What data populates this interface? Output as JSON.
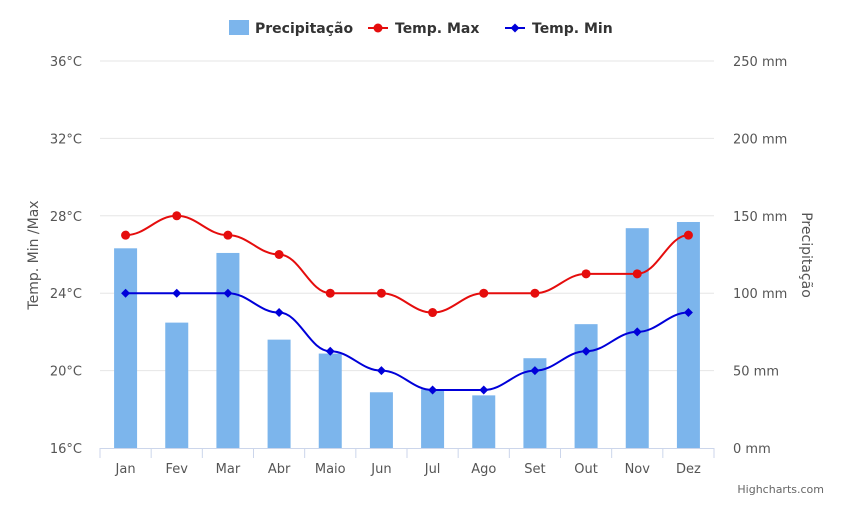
{
  "chart_data": {
    "type": "bar+line",
    "categories": [
      "Jan",
      "Fev",
      "Mar",
      "Abr",
      "Maio",
      "Jun",
      "Jul",
      "Ago",
      "Set",
      "Out",
      "Nov",
      "Dez"
    ],
    "series": [
      {
        "name": "Precipitação",
        "type": "bar",
        "axis": "right",
        "color": "#7cb5ec",
        "values": [
          129,
          81,
          126,
          70,
          61,
          36,
          38,
          34,
          58,
          80,
          142,
          146
        ]
      },
      {
        "name": "Temp. Max",
        "type": "line",
        "axis": "left",
        "color": "#e50d0d",
        "marker": "circle",
        "values": [
          27,
          28,
          27,
          26,
          24,
          24,
          23,
          24,
          24,
          25,
          25,
          27
        ]
      },
      {
        "name": "Temp. Min",
        "type": "line",
        "axis": "left",
        "color": "#0000d9",
        "marker": "diamond",
        "values": [
          24,
          24,
          24,
          23,
          21,
          20,
          19,
          19,
          20,
          21,
          22,
          23
        ]
      }
    ],
    "y_left": {
      "title": "Temp. Min /Max",
      "range": [
        16,
        36
      ],
      "ticks": [
        16,
        20,
        24,
        28,
        32,
        36
      ],
      "tick_labels": [
        "16°C",
        "20°C",
        "24°C",
        "28°C",
        "32°C",
        "36°C"
      ]
    },
    "y_right": {
      "title": "Precipitação",
      "range": [
        0,
        250
      ],
      "ticks": [
        0,
        50,
        100,
        150,
        200,
        250
      ],
      "tick_labels": [
        "0 mm",
        "50 mm",
        "100 mm",
        "150 mm",
        "200 mm",
        "250 mm"
      ]
    },
    "legend_position": "top-center",
    "grid": true
  },
  "credits": "Highcharts.com",
  "colors": {
    "grid": "#e6e6e6",
    "axis_line": "#ccd6eb"
  }
}
